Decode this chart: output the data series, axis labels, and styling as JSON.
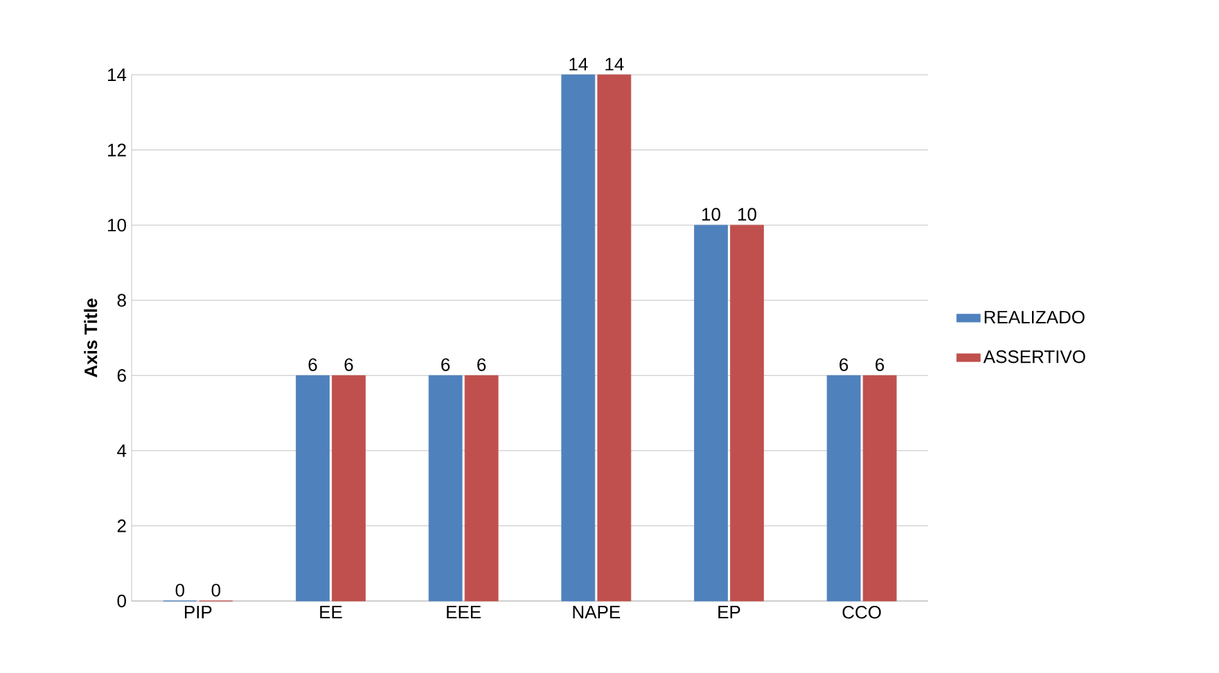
{
  "chart_data": {
    "type": "bar",
    "ylabel": "Axis Title",
    "categories": [
      "PIP",
      "EE",
      "EEE",
      "NAPE",
      "EP",
      "CCO"
    ],
    "series": [
      {
        "name": "REALIZADO",
        "color": "#4f81bd",
        "values": [
          0,
          6,
          6,
          14,
          10,
          6
        ]
      },
      {
        "name": "ASSERTIVO",
        "color": "#c0504d",
        "values": [
          0,
          6,
          6,
          14,
          10,
          6
        ]
      }
    ],
    "ylim": [
      0,
      14
    ],
    "yticks": [
      0,
      2,
      4,
      6,
      8,
      10,
      12,
      14
    ],
    "grid": "y",
    "legend": "right",
    "data_labels": true
  }
}
